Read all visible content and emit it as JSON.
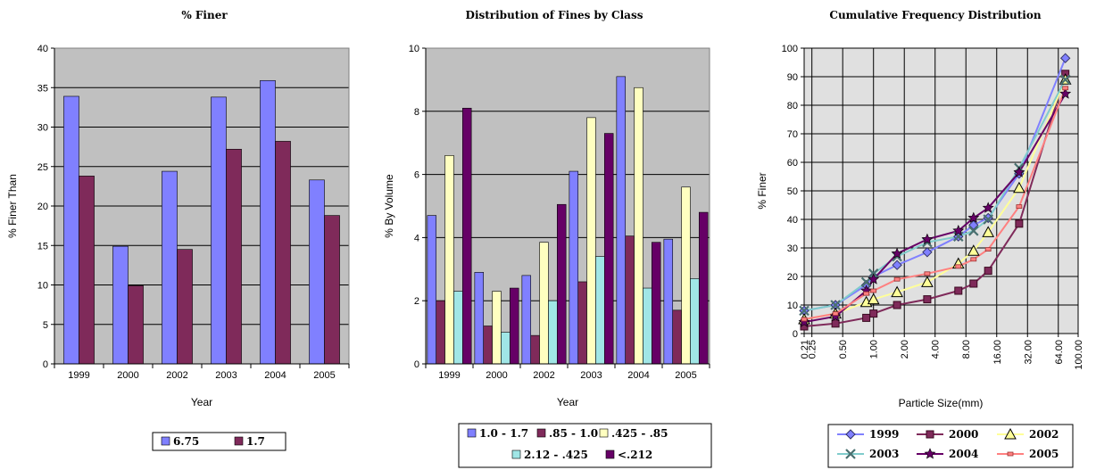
{
  "chart_data": [
    {
      "type": "bar",
      "title": "% Finer",
      "xlabel": "Year",
      "ylabel": "% Finer Than",
      "ylim": [
        0,
        40
      ],
      "yticks": [
        "0",
        "5",
        "10",
        "15",
        "20",
        "25",
        "30",
        "35",
        "40"
      ],
      "categories": [
        "1999",
        "2000",
        "2002",
        "2003",
        "2004",
        "2005"
      ],
      "grid": true,
      "legend_position": "bottom",
      "series": [
        {
          "name": "6.75",
          "color": "#8080ff",
          "values": [
            33.9,
            14.9,
            24.4,
            33.8,
            35.9,
            23.3
          ]
        },
        {
          "name": "1.7",
          "color": "#7f2a5a",
          "values": [
            23.8,
            9.9,
            14.5,
            27.2,
            28.2,
            18.8
          ]
        }
      ]
    },
    {
      "type": "bar",
      "title": "Distribution of Fines by Class",
      "xlabel": "Year",
      "ylabel": "% By Volume",
      "ylim": [
        0,
        10
      ],
      "yticks": [
        "0",
        "2",
        "4",
        "6",
        "8",
        "10"
      ],
      "categories": [
        "1999",
        "2000",
        "2002",
        "2003",
        "2004",
        "2005"
      ],
      "grid": true,
      "legend_position": "bottom",
      "series": [
        {
          "name": "1.0 - 1.7",
          "color": "#8080ff",
          "values": [
            4.7,
            2.9,
            2.8,
            6.1,
            9.1,
            3.95
          ]
        },
        {
          "name": ".85 - 1.0",
          "color": "#7f2a5a",
          "values": [
            2.0,
            1.2,
            0.9,
            2.6,
            4.05,
            1.7
          ]
        },
        {
          "name": ".425 - .85",
          "color": "#ffffc0",
          "values": [
            6.6,
            2.3,
            3.85,
            7.8,
            8.75,
            5.6
          ]
        },
        {
          "name": "2.12 - .425",
          "color": "#a0e6e6",
          "values": [
            2.3,
            1.0,
            2.0,
            3.4,
            2.4,
            2.7
          ]
        },
        {
          "name": "<.212",
          "color": "#660066",
          "values": [
            8.1,
            2.4,
            5.05,
            7.3,
            3.85,
            4.8
          ]
        }
      ]
    },
    {
      "type": "line",
      "title": "Cumulative Frequency Distribution",
      "xlabel": "Particle Size(mm)",
      "ylabel": "% Finer",
      "xscale": "log",
      "xlim": [
        0.21,
        100
      ],
      "ylim": [
        0,
        100
      ],
      "yticks": [
        "0",
        "10",
        "20",
        "30",
        "40",
        "50",
        "60",
        "70",
        "80",
        "90",
        "100"
      ],
      "xticks": [
        {
          "v": 0.21,
          "label": "0.21"
        },
        {
          "v": 0.25,
          "label": "0.25"
        },
        {
          "v": 0.5,
          "label": "0.50"
        },
        {
          "v": 1,
          "label": "1.00"
        },
        {
          "v": 2,
          "label": "2.00"
        },
        {
          "v": 4,
          "label": "4.00"
        },
        {
          "v": 8,
          "label": "8.00"
        },
        {
          "v": 16,
          "label": "16.00"
        },
        {
          "v": 32,
          "label": "32.00"
        },
        {
          "v": 64,
          "label": "64.00"
        },
        {
          "v": 100,
          "label": "100.00"
        }
      ],
      "grid": true,
      "legend_position": "bottom",
      "x": [
        0.21,
        0.425,
        0.85,
        1.0,
        1.7,
        3.35,
        6.75,
        9.5,
        13.2,
        26.5,
        75
      ],
      "series": [
        {
          "name": "1999",
          "color": "#8080ff",
          "marker": "diamond",
          "values": [
            8,
            10,
            17,
            20,
            24,
            28.5,
            34,
            38,
            40.5,
            56,
            96.5
          ]
        },
        {
          "name": "2000",
          "color": "#7f2a5a",
          "marker": "square",
          "values": [
            2.5,
            3.5,
            5.5,
            7,
            10,
            12,
            15,
            17.5,
            22,
            38.5,
            91
          ]
        },
        {
          "name": "2002",
          "color": "#ffff99",
          "marker": "triangle",
          "values": [
            5,
            7,
            11,
            12,
            14.5,
            18,
            24.5,
            29,
            35.5,
            51,
            89
          ]
        },
        {
          "name": "2003",
          "color": "#80cccc",
          "marker": "x",
          "values": [
            8,
            10,
            18,
            21,
            27,
            32,
            34,
            36,
            40,
            58,
            89
          ]
        },
        {
          "name": "2004",
          "color": "#660066",
          "marker": "star",
          "values": [
            4,
            6,
            15,
            19,
            28,
            33,
            36,
            40.5,
            44,
            56.5,
            84
          ]
        },
        {
          "name": "2005",
          "color": "#ff8080",
          "marker": "dash",
          "values": [
            5,
            7,
            14,
            15,
            19,
            21,
            23.5,
            26,
            29.5,
            44.5,
            86
          ]
        }
      ]
    }
  ]
}
